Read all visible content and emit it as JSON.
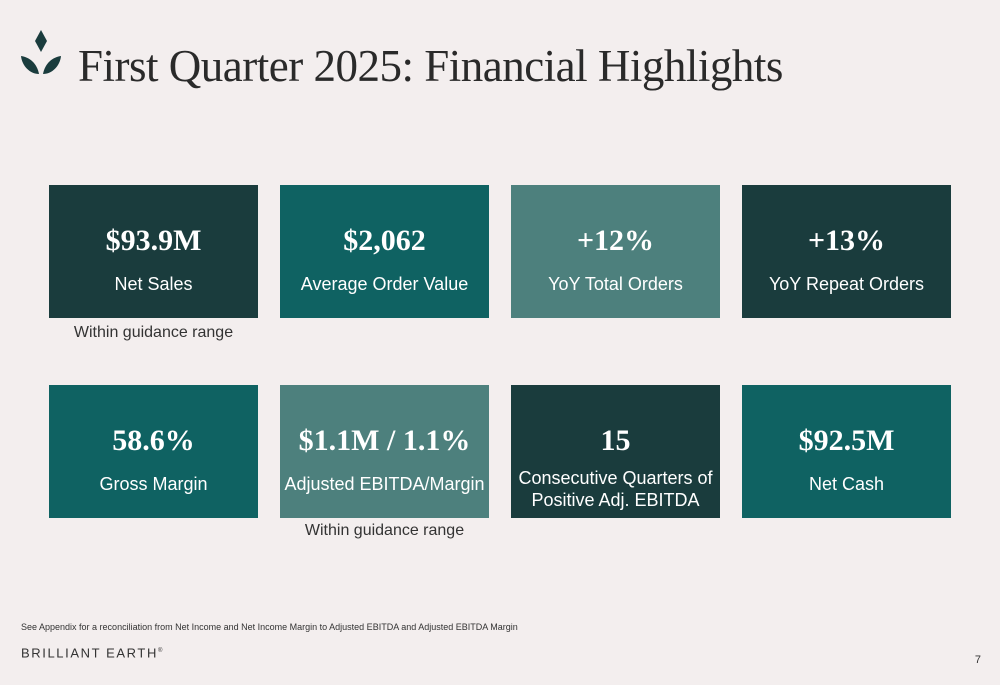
{
  "header": {
    "logo_icon": "diamond-sprout-icon",
    "title": "First Quarter 2025: Financial Highlights",
    "accent_color": "#1a3c3d"
  },
  "metrics": [
    {
      "value": "$93.9M",
      "label": "Net Sales",
      "note": "Within guidance range",
      "color": "#1a3c3d"
    },
    {
      "value": "$2,062",
      "label": "Average Order Value",
      "note": "",
      "color": "#0f6262"
    },
    {
      "value": "+12%",
      "label": "YoY Total Orders",
      "note": "",
      "color": "#4d807d"
    },
    {
      "value": "+13%",
      "label": "YoY Repeat Orders",
      "note": "",
      "color": "#1a3c3d"
    },
    {
      "value": "58.6%",
      "label": "Gross Margin",
      "note": "",
      "color": "#0f6262"
    },
    {
      "value": "$1.1M / 1.1%",
      "label": "Adjusted EBITDA/Margin",
      "note": "Within guidance range",
      "color": "#4d807d"
    },
    {
      "value": "15",
      "label": "Consecutive Quarters of Positive Adj. EBITDA",
      "note": "",
      "color": "#1a3c3d"
    },
    {
      "value": "$92.5M",
      "label": "Net Cash",
      "note": "",
      "color": "#0f6262"
    }
  ],
  "footer": {
    "footnote": "See Appendix for a reconciliation from Net Income and Net Income Margin to Adjusted EBITDA and Adjusted EBITDA Margin",
    "brand": "BRILLIANT EARTH",
    "brand_mark": "®",
    "page_number": "7"
  }
}
